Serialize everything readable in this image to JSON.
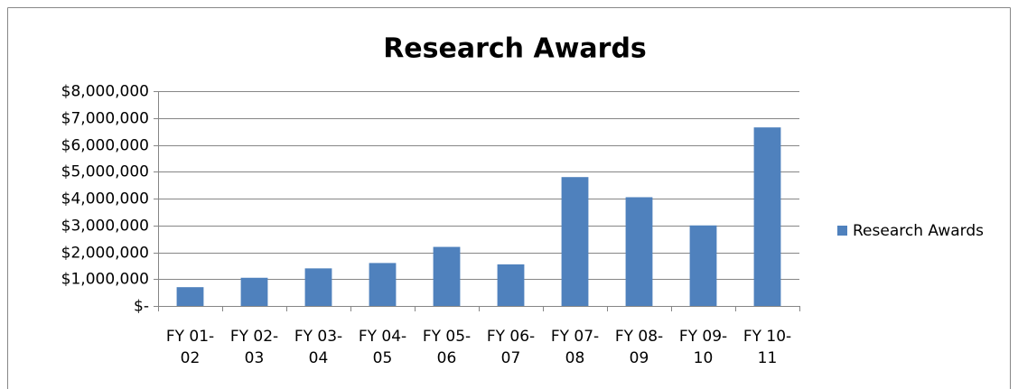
{
  "chart_data": {
    "type": "bar",
    "title": "Research Awards",
    "categories": [
      "FY 01-02",
      "FY 02-03",
      "FY 03-04",
      "FY 04-05",
      "FY 05-06",
      "FY 06-07",
      "FY 07-08",
      "FY 08-09",
      "FY 09-10",
      "FY 10-11"
    ],
    "series": [
      {
        "name": "Research Awards",
        "color": "#4f81bd",
        "values": [
          700000,
          1050000,
          1400000,
          1600000,
          2200000,
          1550000,
          4800000,
          4050000,
          3000000,
          6650000
        ]
      }
    ],
    "ylim": [
      0,
      8000000
    ],
    "yticks": [
      {
        "value": 0,
        "label": "$-"
      },
      {
        "value": 1000000,
        "label": "$1,000,000"
      },
      {
        "value": 2000000,
        "label": "$2,000,000"
      },
      {
        "value": 3000000,
        "label": "$3,000,000"
      },
      {
        "value": 4000000,
        "label": "$4,000,000"
      },
      {
        "value": 5000000,
        "label": "$5,000,000"
      },
      {
        "value": 6000000,
        "label": "$6,000,000"
      },
      {
        "value": 7000000,
        "label": "$7,000,000"
      },
      {
        "value": 8000000,
        "label": "$8,000,000"
      }
    ],
    "grid": true,
    "legend": "right"
  }
}
